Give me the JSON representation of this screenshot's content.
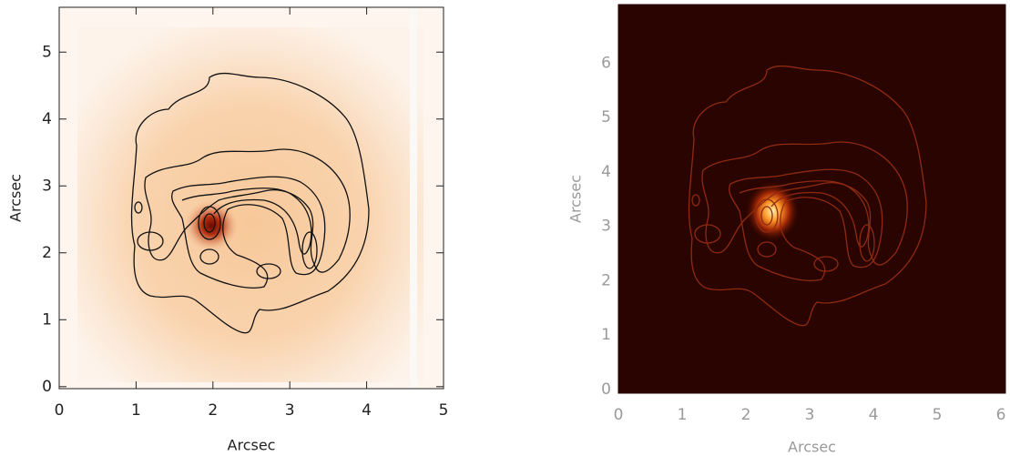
{
  "chart_data": [
    {
      "type": "image",
      "xlabel": "Arcsec",
      "ylabel": "Arcsec",
      "xlim": [
        0,
        5
      ],
      "ylim": [
        -0.03,
        5.67
      ],
      "xticks": [
        0,
        1,
        2,
        3,
        4,
        5
      ],
      "yticks": [
        0,
        1,
        2,
        3,
        4,
        5
      ],
      "color": "#222222"
    },
    {
      "type": "image",
      "xlabel": "Arcsec",
      "ylabel": "Arcsec",
      "xlim": [
        0,
        6.07
      ],
      "ylim": [
        -0.07,
        7.08
      ],
      "xticks": [
        0,
        1,
        2,
        3,
        4,
        5,
        6
      ],
      "yticks": [
        0,
        1,
        2,
        3,
        4,
        5,
        6
      ],
      "color": "#9a9a9a"
    }
  ]
}
